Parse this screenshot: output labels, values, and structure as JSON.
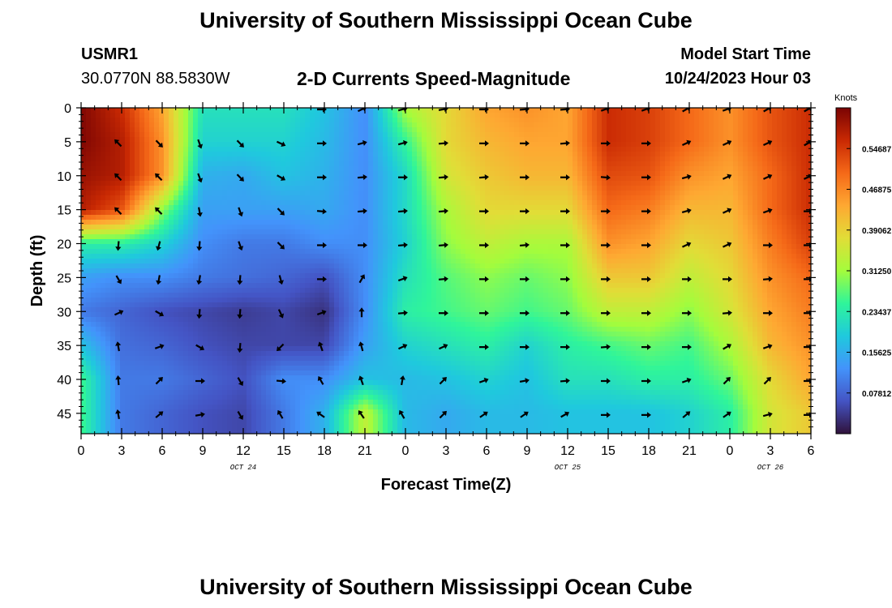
{
  "header": {
    "title": "University of Southern Mississippi Ocean Cube",
    "station_id": "USMR1",
    "coordinates": "30.0770N  88.5830W",
    "model_start_label": "Model Start Time",
    "model_start_value": "10/24/2023 Hour 03"
  },
  "footer": {
    "title": "University of Southern Mississippi Ocean Cube"
  },
  "colors": {
    "colormap": [
      "#30123b",
      "#4454c4",
      "#4393fb",
      "#1fc9dd",
      "#2ff59a",
      "#a4fc3c",
      "#e1dd37",
      "#fea832",
      "#f56918",
      "#c92903",
      "#7a0403"
    ],
    "arrow": "#000000"
  },
  "chart_data": {
    "type": "heatmap",
    "title": "2-D Currents Speed-Magnitude",
    "xlabel": "Forecast Time(Z)",
    "ylabel": "Depth (ft)",
    "x_tick_labels": [
      "0",
      "3",
      "6",
      "9",
      "12",
      "15",
      "18",
      "21",
      "0",
      "3",
      "6",
      "9",
      "12",
      "15",
      "18",
      "21",
      "0",
      "3",
      "6"
    ],
    "date_labels": [
      {
        "label": "OCT 24",
        "at_tick": 4
      },
      {
        "label": "OCT 25",
        "at_tick": 12
      },
      {
        "label": "OCT 26",
        "at_tick": 17
      }
    ],
    "y_ticks": [
      0,
      5,
      10,
      15,
      20,
      25,
      30,
      35,
      40,
      45
    ],
    "ylim": [
      0,
      48
    ],
    "y_inverted": true,
    "colorbar": {
      "unit": "Knots",
      "min": 0,
      "max": 0.625,
      "tick_labels": [
        "0.07812",
        "0.15625",
        "0.23437",
        "0.31250",
        "0.39062",
        "0.46875",
        "0.54687"
      ]
    },
    "depths": [
      0,
      5,
      10,
      15,
      20,
      25,
      30,
      35,
      40,
      45
    ],
    "times_hours": [
      0,
      3,
      6,
      9,
      12,
      15,
      18,
      21,
      24,
      27,
      30,
      33,
      36,
      39,
      42,
      45,
      48,
      51,
      54
    ],
    "speed_knots": [
      [
        0.62,
        0.56,
        0.44,
        0.22,
        0.22,
        0.22,
        0.18,
        0.12,
        0.32,
        0.38,
        0.44,
        0.46,
        0.44,
        0.56,
        0.54,
        0.5,
        0.46,
        0.52,
        0.56
      ],
      [
        0.62,
        0.58,
        0.46,
        0.2,
        0.2,
        0.2,
        0.17,
        0.12,
        0.25,
        0.38,
        0.42,
        0.44,
        0.44,
        0.56,
        0.54,
        0.5,
        0.46,
        0.52,
        0.56
      ],
      [
        0.6,
        0.58,
        0.46,
        0.16,
        0.15,
        0.18,
        0.16,
        0.12,
        0.21,
        0.36,
        0.4,
        0.42,
        0.42,
        0.53,
        0.52,
        0.46,
        0.44,
        0.5,
        0.56
      ],
      [
        0.58,
        0.52,
        0.3,
        0.14,
        0.14,
        0.14,
        0.15,
        0.12,
        0.21,
        0.32,
        0.38,
        0.38,
        0.38,
        0.5,
        0.48,
        0.42,
        0.42,
        0.5,
        0.56
      ],
      [
        0.24,
        0.24,
        0.2,
        0.12,
        0.1,
        0.1,
        0.12,
        0.12,
        0.2,
        0.3,
        0.34,
        0.32,
        0.32,
        0.46,
        0.44,
        0.38,
        0.4,
        0.48,
        0.54
      ],
      [
        0.14,
        0.12,
        0.12,
        0.1,
        0.09,
        0.08,
        0.06,
        0.12,
        0.22,
        0.27,
        0.3,
        0.28,
        0.3,
        0.4,
        0.4,
        0.34,
        0.38,
        0.46,
        0.5
      ],
      [
        0.1,
        0.08,
        0.06,
        0.05,
        0.04,
        0.05,
        0.03,
        0.12,
        0.24,
        0.26,
        0.28,
        0.26,
        0.28,
        0.34,
        0.34,
        0.3,
        0.36,
        0.44,
        0.48
      ],
      [
        0.18,
        0.09,
        0.08,
        0.06,
        0.05,
        0.05,
        0.05,
        0.14,
        0.2,
        0.22,
        0.24,
        0.2,
        0.24,
        0.26,
        0.28,
        0.26,
        0.32,
        0.42,
        0.46
      ],
      [
        0.26,
        0.1,
        0.1,
        0.08,
        0.06,
        0.12,
        0.12,
        0.18,
        0.17,
        0.18,
        0.2,
        0.18,
        0.22,
        0.22,
        0.24,
        0.24,
        0.28,
        0.38,
        0.44
      ],
      [
        0.26,
        0.1,
        0.08,
        0.06,
        0.05,
        0.1,
        0.16,
        0.34,
        0.17,
        0.15,
        0.17,
        0.17,
        0.18,
        0.18,
        0.18,
        0.2,
        0.24,
        0.36,
        0.4
      ]
    ],
    "arrow_rows_depth": [
      0,
      5,
      10,
      15,
      20,
      25,
      30,
      35,
      40,
      45
    ],
    "arrow_direction_deg": [
      [
        null,
        null,
        null,
        null,
        null,
        null,
        270,
        245,
        255,
        260,
        270,
        265,
        265,
        250,
        250,
        240,
        250,
        240,
        240
      ],
      [
        null,
        135,
        315,
        340,
        315,
        295,
        270,
        255,
        255,
        265,
        270,
        270,
        265,
        270,
        270,
        245,
        245,
        245,
        240
      ],
      [
        null,
        135,
        135,
        340,
        315,
        300,
        270,
        265,
        270,
        265,
        265,
        270,
        270,
        275,
        270,
        255,
        245,
        245,
        245
      ],
      [
        null,
        135,
        135,
        350,
        340,
        315,
        275,
        265,
        265,
        265,
        270,
        270,
        270,
        270,
        270,
        255,
        245,
        250,
        270
      ],
      [
        null,
        5,
        15,
        5,
        340,
        315,
        270,
        270,
        265,
        265,
        270,
        265,
        270,
        270,
        270,
        245,
        245,
        270,
        270
      ],
      [
        null,
        330,
        10,
        10,
        5,
        345,
        270,
        210,
        250,
        265,
        270,
        270,
        270,
        270,
        270,
        270,
        270,
        265,
        270
      ],
      [
        155,
        245,
        300,
        5,
        5,
        335,
        250,
        180,
        265,
        270,
        270,
        270,
        270,
        270,
        270,
        270,
        265,
        270,
        270
      ],
      [
        160,
        170,
        250,
        300,
        5,
        45,
        160,
        165,
        245,
        245,
        270,
        270,
        270,
        265,
        270,
        270,
        240,
        250,
        270
      ],
      [
        200,
        175,
        225,
        270,
        330,
        275,
        150,
        160,
        190,
        225,
        250,
        260,
        265,
        270,
        270,
        250,
        225,
        225,
        270
      ],
      [
        140,
        170,
        230,
        260,
        330,
        150,
        125,
        145,
        150,
        225,
        235,
        235,
        240,
        270,
        270,
        230,
        235,
        255,
        270
      ]
    ]
  }
}
